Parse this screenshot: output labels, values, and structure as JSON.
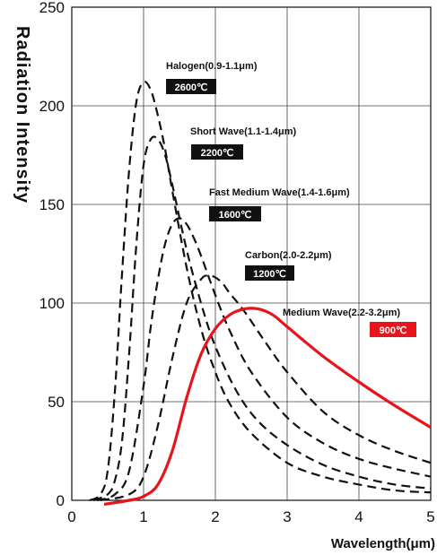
{
  "chart_data": {
    "type": "line",
    "xlabel": "Wavelength(μm)",
    "ylabel": "Radiation Intensity",
    "xlim": [
      0,
      5
    ],
    "ylim": [
      0,
      250
    ],
    "x_ticks": [
      "0",
      "1",
      "2",
      "3",
      "4",
      "5"
    ],
    "y_ticks": [
      "0",
      "50",
      "100",
      "150",
      "200",
      "250"
    ],
    "grid": true,
    "series": [
      {
        "name": "Halogen(0.9-1.1μm)",
        "temperature": "2600℃",
        "style": "dashed",
        "color": "#111111",
        "x": [
          0.25,
          0.4,
          0.5,
          0.6,
          0.7,
          0.8,
          0.9,
          1.0,
          1.1,
          1.2,
          1.3,
          1.4,
          1.6,
          1.8,
          2.0,
          2.2,
          2.5,
          3.0,
          3.5,
          4.0,
          4.5,
          5.0
        ],
        "y": [
          0,
          3,
          15,
          55,
          115,
          168,
          202,
          212,
          208,
          195,
          178,
          157,
          118,
          87,
          65,
          49,
          34,
          19,
          12,
          8,
          5,
          4
        ]
      },
      {
        "name": "Short Wave(1.1-1.4μm)",
        "temperature": "2200℃",
        "style": "dashed",
        "color": "#111111",
        "x": [
          0.3,
          0.5,
          0.6,
          0.7,
          0.8,
          0.9,
          1.0,
          1.1,
          1.2,
          1.3,
          1.4,
          1.6,
          1.8,
          2.0,
          2.3,
          2.6,
          3.0,
          3.5,
          4.0,
          4.5,
          5.0
        ],
        "y": [
          0,
          3,
          10,
          30,
          75,
          130,
          170,
          183,
          183,
          175,
          160,
          127,
          100,
          78,
          55,
          40,
          28,
          18,
          12,
          8,
          6
        ]
      },
      {
        "name": "Fast Medium Wave(1.4-1.6μm)",
        "temperature": "1600℃",
        "style": "dashed",
        "color": "#111111",
        "x": [
          0.35,
          0.6,
          0.8,
          1.0,
          1.1,
          1.2,
          1.3,
          1.4,
          1.5,
          1.6,
          1.7,
          1.8,
          2.0,
          2.2,
          2.5,
          3.0,
          3.5,
          4.0,
          4.5,
          5.0
        ],
        "y": [
          0,
          3,
          15,
          58,
          88,
          112,
          130,
          140,
          143,
          140,
          133,
          124,
          104,
          86,
          65,
          42,
          29,
          21,
          16,
          12
        ]
      },
      {
        "name": "Carbon(2.0-2.2μm)",
        "temperature": "1200℃",
        "style": "dashed",
        "color": "#111111",
        "x": [
          0.4,
          0.8,
          1.0,
          1.2,
          1.4,
          1.6,
          1.8,
          1.9,
          2.0,
          2.1,
          2.2,
          2.4,
          2.7,
          3.0,
          3.5,
          4.0,
          4.5,
          5.0
        ],
        "y": [
          0,
          3,
          12,
          38,
          72,
          100,
          112,
          114,
          113,
          110,
          105,
          96,
          80,
          65,
          45,
          33,
          25,
          19
        ]
      },
      {
        "name": "Medium Wave(2.2-3.2μm)",
        "temperature": "900℃",
        "style": "solid",
        "color": "#e8141c",
        "x": [
          0.45,
          0.8,
          1.0,
          1.2,
          1.4,
          1.6,
          1.8,
          2.0,
          2.2,
          2.4,
          2.6,
          2.8,
          3.0,
          3.5,
          4.0,
          4.5,
          5.0
        ],
        "y": [
          -2,
          0,
          2,
          8,
          25,
          52,
          74,
          87,
          94,
          97,
          97,
          94,
          88,
          73,
          60,
          48,
          37
        ]
      }
    ]
  }
}
